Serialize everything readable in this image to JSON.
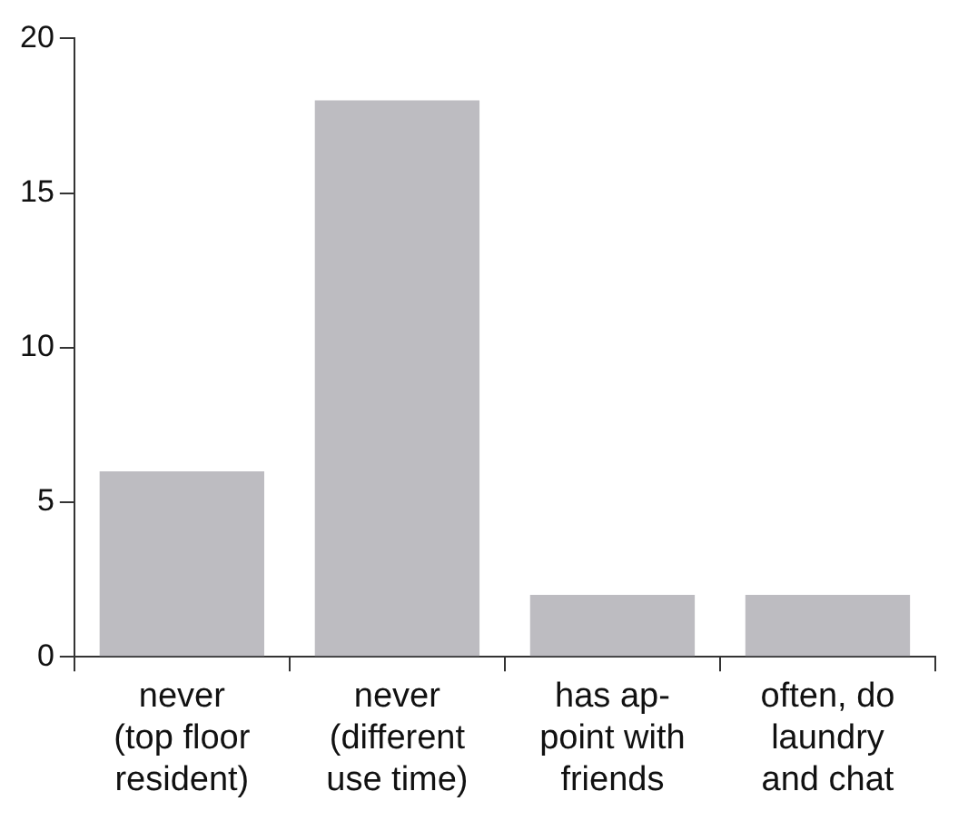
{
  "chart_data": {
    "type": "bar",
    "categories": [
      "never\n(top floor\nresident)",
      "never\n(different\nuse time)",
      "has ap-\npoint with\nfriends",
      "often, do\nlaundry\nand chat"
    ],
    "values": [
      6,
      18,
      2,
      2
    ],
    "color": "#bdbcc1",
    "ylim": [
      0,
      20
    ],
    "yticks": [
      0,
      5,
      10,
      15,
      20
    ],
    "grid": false,
    "legend": false
  }
}
